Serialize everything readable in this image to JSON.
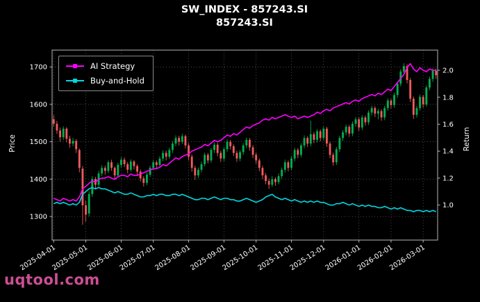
{
  "watermark": {
    "text": "uqtool.com",
    "color": "#d9539e"
  },
  "chart_data": {
    "type": "candlestick+line",
    "title": "SW_INDEX - 857243.SI",
    "subtitle": "857243.SI",
    "price_axis": {
      "label": "Price",
      "range": [
        1237,
        1745
      ],
      "ticks": [
        1300,
        1400,
        1500,
        1600,
        1700
      ]
    },
    "return_axis": {
      "label": "Return",
      "range": [
        0.74,
        2.15
      ],
      "ticks": [
        1.0,
        1.2,
        1.4,
        1.6,
        1.8,
        2.0
      ]
    },
    "x_ticks": {
      "indices": [
        0,
        10,
        21,
        31,
        42,
        53,
        63,
        74,
        84,
        95,
        105,
        115
      ],
      "labels": [
        "2025-04-01",
        "2025-05-01",
        "2025-06-01",
        "2025-07-01",
        "2025-08-01",
        "2025-09-01",
        "2025-10-01",
        "2025-11-01",
        "2025-12-01",
        "2026-01-01",
        "2026-02-01",
        "2026-03-01"
      ]
    },
    "colors": {
      "up": "#00b050",
      "down": "#f05b5b",
      "grid": "#5a5a5a",
      "frame": "#b8b8b8",
      "tick_text": "#ffffff",
      "background": "#000000"
    },
    "candles": [
      [
        1560,
        1571,
        1540,
        1548
      ],
      [
        1548,
        1556,
        1521,
        1530
      ],
      [
        1530,
        1538,
        1500,
        1512
      ],
      [
        1512,
        1541,
        1505,
        1535
      ],
      [
        1535,
        1539,
        1498,
        1508
      ],
      [
        1508,
        1516,
        1484,
        1495
      ],
      [
        1495,
        1510,
        1488,
        1502
      ],
      [
        1502,
        1507,
        1470,
        1480
      ],
      [
        1478,
        1482,
        1418,
        1430
      ],
      [
        1428,
        1435,
        1278,
        1330
      ],
      [
        1330,
        1342,
        1286,
        1305
      ],
      [
        1308,
        1368,
        1300,
        1360
      ],
      [
        1360,
        1408,
        1352,
        1400
      ],
      [
        1400,
        1406,
        1372,
        1385
      ],
      [
        1385,
        1422,
        1380,
        1415
      ],
      [
        1415,
        1437,
        1408,
        1430
      ],
      [
        1430,
        1436,
        1412,
        1422
      ],
      [
        1422,
        1450,
        1416,
        1445
      ],
      [
        1445,
        1452,
        1422,
        1430
      ],
      [
        1430,
        1434,
        1400,
        1410
      ],
      [
        1410,
        1444,
        1404,
        1438
      ],
      [
        1438,
        1459,
        1430,
        1452
      ],
      [
        1452,
        1458,
        1432,
        1440
      ],
      [
        1440,
        1446,
        1416,
        1425
      ],
      [
        1425,
        1453,
        1420,
        1447
      ],
      [
        1447,
        1451,
        1426,
        1435
      ],
      [
        1435,
        1440,
        1410,
        1420
      ],
      [
        1420,
        1426,
        1394,
        1402
      ],
      [
        1402,
        1408,
        1380,
        1390
      ],
      [
        1390,
        1418,
        1384,
        1412
      ],
      [
        1412,
        1436,
        1406,
        1430
      ],
      [
        1430,
        1451,
        1424,
        1445
      ],
      [
        1445,
        1450,
        1428,
        1438
      ],
      [
        1438,
        1461,
        1432,
        1455
      ],
      [
        1455,
        1477,
        1448,
        1470
      ],
      [
        1470,
        1476,
        1450,
        1460
      ],
      [
        1460,
        1484,
        1454,
        1478
      ],
      [
        1478,
        1501,
        1470,
        1495
      ],
      [
        1495,
        1517,
        1488,
        1510
      ],
      [
        1510,
        1516,
        1490,
        1500
      ],
      [
        1500,
        1521,
        1494,
        1515
      ],
      [
        1515,
        1519,
        1482,
        1490
      ],
      [
        1490,
        1496,
        1450,
        1460
      ],
      [
        1460,
        1466,
        1420,
        1430
      ],
      [
        1430,
        1436,
        1398,
        1410
      ],
      [
        1410,
        1431,
        1402,
        1425
      ],
      [
        1425,
        1447,
        1418,
        1440
      ],
      [
        1440,
        1471,
        1434,
        1465
      ],
      [
        1465,
        1470,
        1442,
        1450
      ],
      [
        1450,
        1483,
        1444,
        1478
      ],
      [
        1478,
        1498,
        1470,
        1492
      ],
      [
        1492,
        1497,
        1461,
        1470
      ],
      [
        1470,
        1476,
        1446,
        1455
      ],
      [
        1455,
        1486,
        1448,
        1480
      ],
      [
        1480,
        1506,
        1473,
        1500
      ],
      [
        1500,
        1505,
        1479,
        1488
      ],
      [
        1488,
        1493,
        1462,
        1470
      ],
      [
        1470,
        1476,
        1446,
        1455
      ],
      [
        1455,
        1478,
        1448,
        1472
      ],
      [
        1472,
        1496,
        1465,
        1490
      ],
      [
        1490,
        1511,
        1483,
        1505
      ],
      [
        1505,
        1510,
        1476,
        1485
      ],
      [
        1485,
        1491,
        1456,
        1465
      ],
      [
        1465,
        1471,
        1441,
        1450
      ],
      [
        1450,
        1455,
        1421,
        1430
      ],
      [
        1430,
        1436,
        1400,
        1410
      ],
      [
        1410,
        1416,
        1386,
        1395
      ],
      [
        1395,
        1401,
        1374,
        1385
      ],
      [
        1385,
        1408,
        1379,
        1400
      ],
      [
        1400,
        1405,
        1382,
        1392
      ],
      [
        1392,
        1415,
        1386,
        1408
      ],
      [
        1408,
        1431,
        1401,
        1425
      ],
      [
        1425,
        1452,
        1418,
        1445
      ],
      [
        1445,
        1450,
        1421,
        1430
      ],
      [
        1430,
        1461,
        1424,
        1455
      ],
      [
        1455,
        1484,
        1448,
        1478
      ],
      [
        1478,
        1483,
        1456,
        1465
      ],
      [
        1465,
        1496,
        1458,
        1490
      ],
      [
        1490,
        1517,
        1483,
        1510
      ],
      [
        1510,
        1515,
        1486,
        1495
      ],
      [
        1495,
        1556,
        1488,
        1520
      ],
      [
        1520,
        1526,
        1496,
        1505
      ],
      [
        1505,
        1534,
        1498,
        1528
      ],
      [
        1528,
        1533,
        1501,
        1510
      ],
      [
        1510,
        1541,
        1503,
        1535
      ],
      [
        1535,
        1540,
        1486,
        1495
      ],
      [
        1495,
        1500,
        1456,
        1465
      ],
      [
        1465,
        1471,
        1436,
        1445
      ],
      [
        1445,
        1486,
        1438,
        1480
      ],
      [
        1480,
        1516,
        1473,
        1510
      ],
      [
        1510,
        1531,
        1502,
        1525
      ],
      [
        1525,
        1546,
        1517,
        1540
      ],
      [
        1540,
        1545,
        1513,
        1522
      ],
      [
        1522,
        1554,
        1515,
        1548
      ],
      [
        1548,
        1566,
        1540,
        1560
      ],
      [
        1560,
        1565,
        1529,
        1538
      ],
      [
        1538,
        1571,
        1531,
        1565
      ],
      [
        1565,
        1570,
        1543,
        1552
      ],
      [
        1552,
        1584,
        1545,
        1578
      ],
      [
        1578,
        1596,
        1570,
        1590
      ],
      [
        1590,
        1595,
        1566,
        1575
      ],
      [
        1575,
        1588,
        1560,
        1582
      ],
      [
        1582,
        1587,
        1556,
        1565
      ],
      [
        1565,
        1596,
        1558,
        1590
      ],
      [
        1590,
        1616,
        1583,
        1610
      ],
      [
        1610,
        1615,
        1589,
        1598
      ],
      [
        1598,
        1631,
        1591,
        1625
      ],
      [
        1625,
        1661,
        1618,
        1655
      ],
      [
        1655,
        1694,
        1648,
        1688
      ],
      [
        1688,
        1710,
        1680,
        1702
      ],
      [
        1702,
        1707,
        1656,
        1665
      ],
      [
        1665,
        1671,
        1606,
        1615
      ],
      [
        1615,
        1621,
        1561,
        1572
      ],
      [
        1572,
        1596,
        1565,
        1590
      ],
      [
        1590,
        1626,
        1583,
        1620
      ],
      [
        1620,
        1625,
        1591,
        1600
      ],
      [
        1600,
        1651,
        1594,
        1645
      ],
      [
        1645,
        1674,
        1638,
        1668
      ],
      [
        1668,
        1696,
        1660,
        1690
      ],
      [
        1690,
        1695,
        1668,
        1678
      ]
    ],
    "series": [
      {
        "name": "AI Strategy",
        "axis": "return",
        "color": "#ff00ff",
        "values": [
          1.05,
          1.04,
          1.03,
          1.05,
          1.04,
          1.03,
          1.04,
          1.03,
          1.06,
          1.12,
          1.14,
          1.16,
          1.18,
          1.17,
          1.19,
          1.2,
          1.2,
          1.21,
          1.2,
          1.19,
          1.21,
          1.22,
          1.22,
          1.21,
          1.23,
          1.22,
          1.22,
          1.23,
          1.24,
          1.25,
          1.26,
          1.27,
          1.27,
          1.28,
          1.3,
          1.29,
          1.31,
          1.33,
          1.35,
          1.34,
          1.36,
          1.37,
          1.38,
          1.4,
          1.41,
          1.42,
          1.43,
          1.45,
          1.44,
          1.46,
          1.48,
          1.47,
          1.48,
          1.5,
          1.52,
          1.51,
          1.53,
          1.52,
          1.54,
          1.56,
          1.58,
          1.57,
          1.59,
          1.6,
          1.61,
          1.63,
          1.64,
          1.63,
          1.65,
          1.64,
          1.65,
          1.66,
          1.67,
          1.66,
          1.65,
          1.66,
          1.64,
          1.65,
          1.66,
          1.65,
          1.66,
          1.67,
          1.69,
          1.68,
          1.7,
          1.71,
          1.7,
          1.72,
          1.73,
          1.74,
          1.75,
          1.76,
          1.75,
          1.77,
          1.78,
          1.77,
          1.79,
          1.8,
          1.81,
          1.82,
          1.81,
          1.83,
          1.82,
          1.84,
          1.86,
          1.85,
          1.88,
          1.91,
          1.94,
          1.97,
          2.02,
          2.05,
          2.01,
          1.99,
          2.02,
          2.0,
          1.99,
          2.01,
          2.0,
          2.0
        ]
      },
      {
        "name": "Buy-and-Hold",
        "axis": "return",
        "color": "#00d8e0",
        "values": [
          1.01,
          1.02,
          1.01,
          1.02,
          1.01,
          1.0,
          1.01,
          1.0,
          1.02,
          1.08,
          1.1,
          1.12,
          1.13,
          1.12,
          1.13,
          1.12,
          1.12,
          1.11,
          1.1,
          1.09,
          1.1,
          1.09,
          1.08,
          1.08,
          1.09,
          1.08,
          1.07,
          1.06,
          1.06,
          1.07,
          1.07,
          1.08,
          1.07,
          1.08,
          1.08,
          1.07,
          1.07,
          1.08,
          1.08,
          1.07,
          1.08,
          1.07,
          1.06,
          1.05,
          1.04,
          1.04,
          1.05,
          1.05,
          1.04,
          1.05,
          1.06,
          1.05,
          1.04,
          1.05,
          1.05,
          1.04,
          1.04,
          1.03,
          1.03,
          1.04,
          1.05,
          1.04,
          1.03,
          1.02,
          1.03,
          1.04,
          1.06,
          1.07,
          1.08,
          1.06,
          1.05,
          1.04,
          1.05,
          1.04,
          1.03,
          1.04,
          1.03,
          1.02,
          1.03,
          1.02,
          1.03,
          1.02,
          1.03,
          1.02,
          1.02,
          1.01,
          1.0,
          1.0,
          1.01,
          1.01,
          1.02,
          1.01,
          1.0,
          1.01,
          1.0,
          0.99,
          1.0,
          0.99,
          1.0,
          0.99,
          0.99,
          0.98,
          0.98,
          0.99,
          0.98,
          0.97,
          0.98,
          0.97,
          0.98,
          0.97,
          0.96,
          0.96,
          0.95,
          0.96,
          0.96,
          0.95,
          0.96,
          0.95,
          0.96,
          0.95
        ]
      }
    ],
    "legend_position": "upper-left",
    "grid": true
  }
}
